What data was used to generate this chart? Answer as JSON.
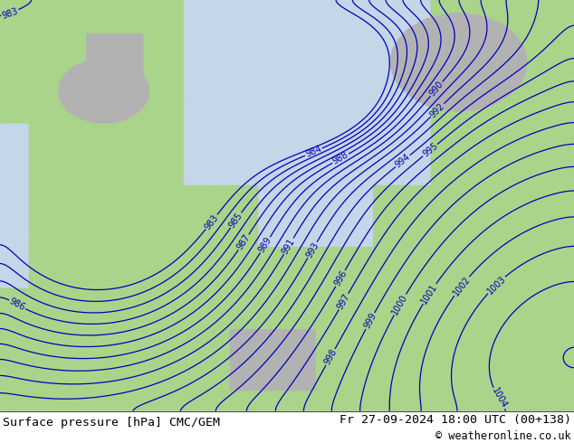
{
  "title_left": "Surface pressure [hPa] CMC/GEM",
  "title_right": "Fr 27-09-2024 18:00 UTC (00+138)",
  "copyright": "© weatheronline.co.uk",
  "bg_color_land_green": "#aad48a",
  "bg_color_land_gray": "#b8b8b8",
  "bg_color_sea": "#d0dce8",
  "contour_color": "#0000bb",
  "contour_linewidth": 0.9,
  "label_fontsize": 7,
  "footer_fontsize": 9.5,
  "copyright_fontsize": 8.5,
  "figsize": [
    6.34,
    4.9
  ],
  "dpi": 100,
  "pressure_min": 983,
  "pressure_max": 1009,
  "pressure_step": 1
}
